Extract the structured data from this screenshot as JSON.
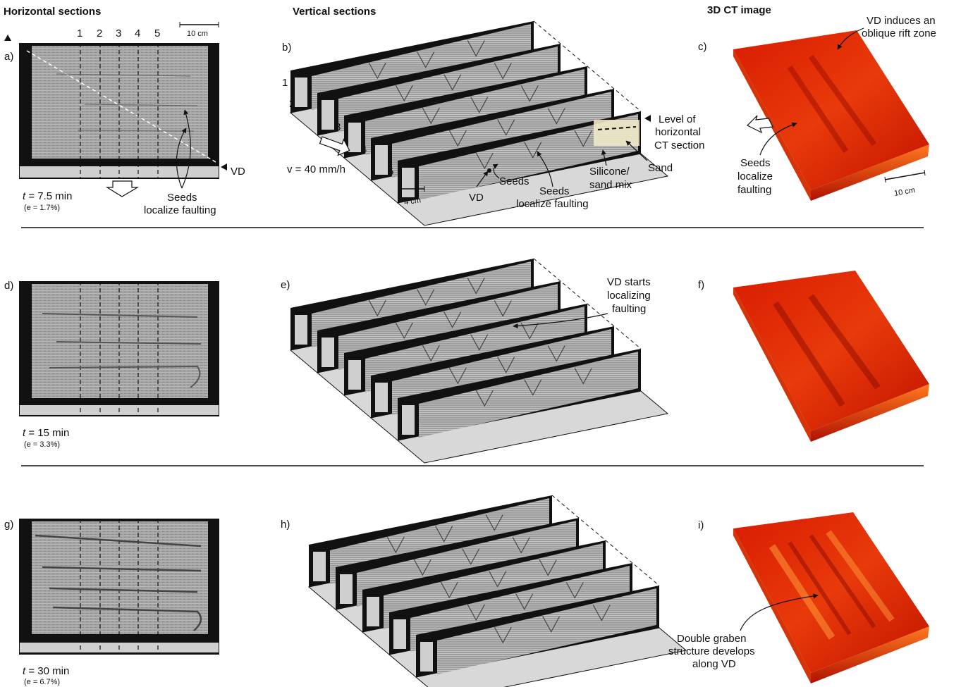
{
  "headers": {
    "horizontal": "Horizontal sections",
    "vertical": "Vertical sections",
    "ct": "3D CT image"
  },
  "panels": [
    "a)",
    "b)",
    "c)",
    "d)",
    "e)",
    "f)",
    "g)",
    "h)",
    "i)"
  ],
  "section_numbers": [
    "1",
    "2",
    "3",
    "4",
    "5"
  ],
  "scale_bars": {
    "top_left": "10 cm",
    "vertical": "4 cm",
    "ct": "10 cm"
  },
  "rows": [
    {
      "time_prefix": "t",
      "time_value": " = 7.5 min",
      "strain": "(e = 1.7%)"
    },
    {
      "time_prefix": "t",
      "time_value": " = 15 min",
      "strain": "(e = 3.3%)"
    },
    {
      "time_prefix": "t",
      "time_value": " = 30 min",
      "strain": "(e = 6.7%)"
    }
  ],
  "annotations": {
    "vd": "VD",
    "seeds_a": [
      "Seeds",
      "localize faulting"
    ],
    "velocity": "v = 40 mm/h",
    "vd_b": "VD",
    "seeds_b1": "Seeds",
    "seeds_b2": [
      "Seeds",
      "localize faulting"
    ],
    "silicone": [
      "Silicone/",
      "sand mix"
    ],
    "sand": "Sand",
    "level": [
      "Level of",
      "horizontal",
      "CT section"
    ],
    "vd_oblique": [
      "VD induces an",
      "oblique rift zone"
    ],
    "seeds_c": [
      "Seeds",
      "localize",
      "faulting"
    ],
    "vd_starts": [
      "VD starts",
      "localizing",
      "faulting"
    ],
    "double_graben": [
      "Double graben",
      "structure develops",
      "along VD"
    ]
  },
  "colors": {
    "ct_dark": "#c41400",
    "ct_mid": "#e62a06",
    "ct_light": "#ff6a1a",
    "section_grey": "#9a9a9a",
    "sand": "#efe9c8"
  }
}
